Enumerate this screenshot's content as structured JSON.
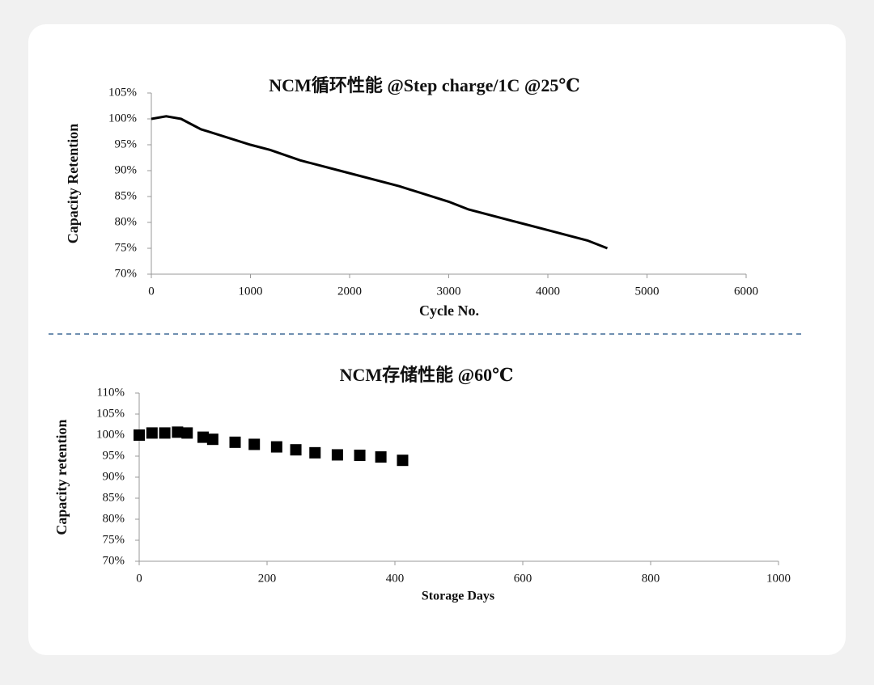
{
  "chart_data": [
    {
      "type": "line",
      "title": "NCM循环性能 @Step charge/1C @25℃",
      "x_label": "Cycle No.",
      "y_label": "Capacity Retention",
      "x": [
        0,
        150,
        300,
        500,
        1000,
        1200,
        1500,
        1900,
        2500,
        3000,
        3200,
        3700,
        4000,
        4400,
        4600
      ],
      "values": [
        100,
        100.5,
        100,
        98,
        95,
        94,
        92,
        90,
        87,
        84,
        82.5,
        80,
        78.5,
        76.5,
        75
      ],
      "color": "#000000",
      "xlim": [
        0,
        6000
      ],
      "xticks": [
        0,
        1000,
        2000,
        3000,
        4000,
        5000,
        6000
      ],
      "ylim": [
        70,
        105
      ],
      "yticks": [
        {
          "value": 70,
          "label": "70%"
        },
        {
          "value": 75,
          "label": "75%"
        },
        {
          "value": 80,
          "label": "80%"
        },
        {
          "value": 85,
          "label": "85%"
        },
        {
          "value": 90,
          "label": "90%"
        },
        {
          "value": 95,
          "label": "95%"
        },
        {
          "value": 100,
          "label": "100%"
        },
        {
          "value": 105,
          "label": "105%"
        }
      ],
      "grid": false
    },
    {
      "type": "scatter",
      "title": "NCM存储性能 @60℃",
      "x_label": "Storage Days",
      "y_label": "Capacity retention",
      "x": [
        0,
        20,
        40,
        60,
        75,
        100,
        115,
        150,
        180,
        215,
        245,
        275,
        310,
        345,
        378,
        412
      ],
      "values": [
        100,
        100.5,
        100.5,
        100.7,
        100.5,
        99.5,
        99,
        98.3,
        97.8,
        97.2,
        96.5,
        95.8,
        95.3,
        95.2,
        94.8,
        94
      ],
      "color": "#000000",
      "xlim": [
        0,
        1000
      ],
      "xticks": [
        0,
        200,
        400,
        600,
        800,
        1000
      ],
      "ylim": [
        70,
        110
      ],
      "yticks": [
        {
          "value": 70,
          "label": "70%"
        },
        {
          "value": 75,
          "label": "75%"
        },
        {
          "value": 80,
          "label": "80%"
        },
        {
          "value": 85,
          "label": "85%"
        },
        {
          "value": 90,
          "label": "90%"
        },
        {
          "value": 95,
          "label": "95%"
        },
        {
          "value": 100,
          "label": "100%"
        },
        {
          "value": 105,
          "label": "105%"
        },
        {
          "value": 110,
          "label": "110%"
        }
      ],
      "grid": false
    }
  ]
}
